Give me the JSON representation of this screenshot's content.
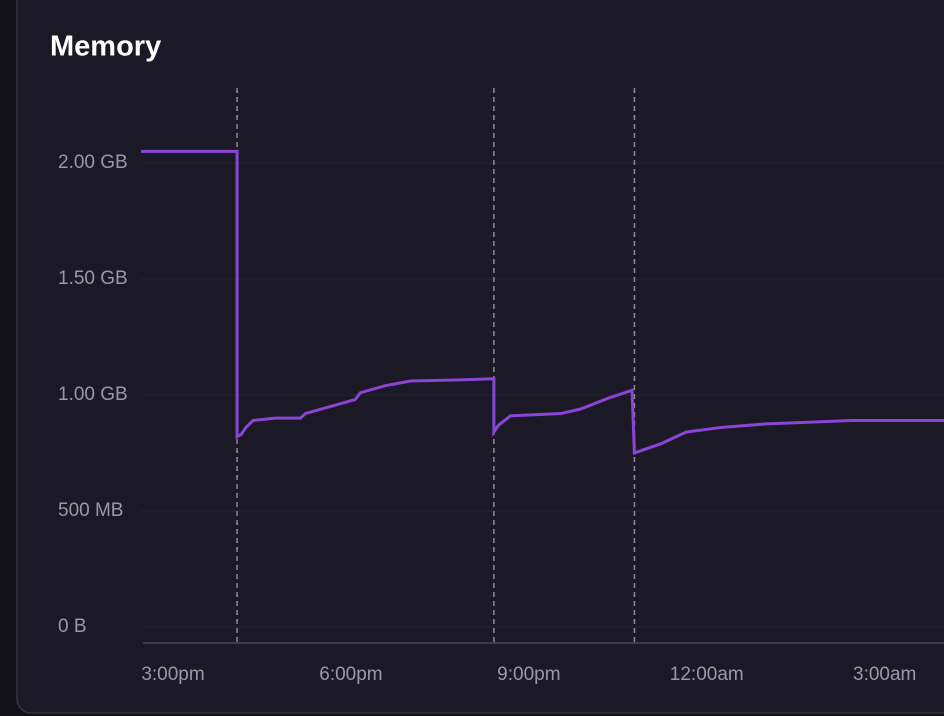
{
  "chart_data": {
    "type": "line",
    "title": "Memory",
    "color": "#8a45d6",
    "x": [
      14.46,
      16.08,
      16.08,
      16.15,
      16.23,
      16.35,
      16.72,
      17.15,
      17.23,
      17.65,
      18.07,
      18.16,
      18.58,
      19.0,
      19.85,
      20.41,
      20.41,
      20.49,
      20.69,
      21.54,
      21.88,
      22.38,
      22.74,
      22.78,
      23.23,
      23.65,
      24.24,
      24.97,
      26.44,
      27.28,
      28.0
    ],
    "values": [
      2.05,
      2.05,
      0.82,
      0.83,
      0.86,
      0.89,
      0.9,
      0.9,
      0.92,
      0.95,
      0.98,
      1.01,
      1.04,
      1.06,
      1.065,
      1.07,
      0.84,
      0.87,
      0.91,
      0.92,
      0.94,
      0.99,
      1.02,
      0.75,
      0.79,
      0.84,
      0.86,
      0.875,
      0.89,
      0.89,
      0.89
    ],
    "xlim": [
      14.46,
      28.0
    ],
    "xticks": [
      {
        "value": 15,
        "label": "3:00pm"
      },
      {
        "value": 18,
        "label": "6:00pm"
      },
      {
        "value": 21,
        "label": "9:00pm"
      },
      {
        "value": 24,
        "label": "12:00am"
      },
      {
        "value": 27,
        "label": "3:00am"
      }
    ],
    "ylim": [
      -0.069,
      2.323
    ],
    "yticks": [
      {
        "value": 0,
        "label": "0 B"
      },
      {
        "value": 0.5,
        "label": "500 MB"
      },
      {
        "value": 1,
        "label": "1.00 GB"
      },
      {
        "value": 1.5,
        "label": "1.50 GB"
      },
      {
        "value": 2,
        "label": "2.00 GB"
      }
    ],
    "event_lines": [
      16.08,
      20.41,
      22.78
    ],
    "grid": true
  }
}
